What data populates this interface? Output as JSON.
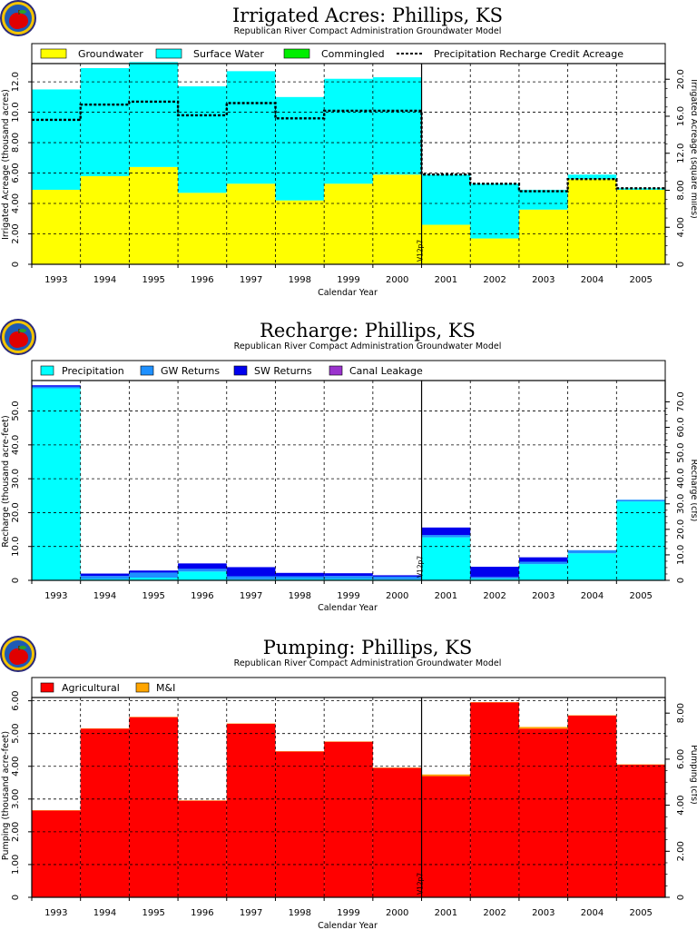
{
  "chart_data": [
    {
      "type": "bar",
      "title": "Irrigated Acres: Phillips, KS",
      "subtitle": "Republican River Compact Administration Groundwater Model",
      "xlabel": "Calendar Year",
      "ylabel": "Irrigated Acreage (thousand acres)",
      "y2label": "Irrigated Acreage (square miles)",
      "categories": [
        "1993",
        "1994",
        "1995",
        "1996",
        "1997",
        "1998",
        "1999",
        "2000",
        "2001",
        "2002",
        "2003",
        "2004",
        "2005"
      ],
      "ylim": [
        0,
        13.2
      ],
      "yticks": [
        "0",
        "2.00",
        "4.00",
        "6.00",
        "8.00",
        "10.0",
        "12.0"
      ],
      "y2ticks": [
        "0",
        "4.00",
        "8.00",
        "12.0",
        "16.0",
        "20.0"
      ],
      "stacked": true,
      "divider_label": "V12p7",
      "divider_after": "2000",
      "legend": [
        "Groundwater",
        "Surface Water",
        "Commingled",
        "Precipitation Recharge Credit Acreage"
      ],
      "series": [
        {
          "name": "Groundwater",
          "color": "#ffff00",
          "values": [
            4.9,
            5.8,
            6.4,
            4.7,
            5.3,
            4.2,
            5.3,
            5.9,
            2.6,
            1.7,
            3.6,
            5.6,
            4.9
          ]
        },
        {
          "name": "Surface Water",
          "color": "#00ffff",
          "values": [
            6.6,
            7.1,
            6.9,
            7.0,
            7.4,
            6.8,
            6.9,
            6.4,
            3.3,
            3.6,
            1.3,
            0.3,
            0.1
          ]
        },
        {
          "name": "Commingled",
          "color": "#00ee00",
          "values": [
            0,
            0,
            0,
            0,
            0,
            0,
            0,
            0,
            0,
            0,
            0,
            0,
            0
          ]
        }
      ],
      "line_series": {
        "name": "Precipitation Recharge Credit Acreage",
        "values": [
          9.5,
          10.5,
          10.7,
          9.8,
          10.6,
          9.6,
          10.1,
          10.1,
          5.9,
          5.3,
          4.8,
          5.6,
          5.0
        ]
      },
      "grid": true,
      "legend_position": "top"
    },
    {
      "type": "bar",
      "title": "Recharge: Phillips, KS",
      "subtitle": "Republican River Compact Administration Groundwater Model",
      "xlabel": "Calendar Year",
      "ylabel": "Recharge (thousand acre-feet)",
      "y2label": "Recharge (cfs)",
      "categories": [
        "1993",
        "1994",
        "1995",
        "1996",
        "1997",
        "1998",
        "1999",
        "2000",
        "2001",
        "2002",
        "2003",
        "2004",
        "2005"
      ],
      "ylim": [
        0,
        59
      ],
      "yticks": [
        "0",
        "10.0",
        "20.0",
        "30.0",
        "40.0",
        "50.0"
      ],
      "y2ticks": [
        "0",
        "10.0",
        "20.0",
        "30.0",
        "40.0",
        "50.0",
        "60.0",
        "70.0"
      ],
      "stacked": true,
      "divider_label": "V12p7",
      "divider_after": "2000",
      "legend": [
        "Precipitation",
        "GW Returns",
        "SW Returns",
        "Canal Leakage"
      ],
      "series": [
        {
          "name": "Precipitation",
          "color": "#00ffff",
          "values": [
            56.7,
            0.4,
            0.8,
            2.6,
            0.3,
            0.4,
            0.4,
            0.3,
            12.7,
            0.5,
            4.8,
            8.0,
            23.3
          ]
        },
        {
          "name": "GW Returns",
          "color": "#1e90ff",
          "values": [
            0.5,
            0.9,
            1.5,
            0.8,
            0.9,
            0.8,
            0.9,
            0.8,
            0.7,
            0.5,
            0.7,
            0.9,
            0.5
          ]
        },
        {
          "name": "SW Returns",
          "color": "#0000ee",
          "values": [
            0.4,
            0.7,
            0.6,
            1.6,
            2.7,
            1.0,
            0.8,
            0.4,
            2.2,
            3.0,
            1.3,
            0,
            0
          ]
        },
        {
          "name": "Canal Leakage",
          "color": "#9a32cd",
          "values": [
            0,
            0,
            0,
            0,
            0,
            0,
            0,
            0,
            0,
            0,
            0,
            0,
            0
          ]
        }
      ],
      "grid": true,
      "legend_position": "top"
    },
    {
      "type": "bar",
      "title": "Pumping: Phillips, KS",
      "subtitle": "Republican River Compact Administration Groundwater Model",
      "xlabel": "Calendar Year",
      "ylabel": "Pumping (thousand acre-feet)",
      "y2label": "Pumping (cfs)",
      "categories": [
        "1993",
        "1994",
        "1995",
        "1996",
        "1997",
        "1998",
        "1999",
        "2000",
        "2001",
        "2002",
        "2003",
        "2004",
        "2005"
      ],
      "ylim": [
        0,
        6.1
      ],
      "yticks": [
        "0",
        "1.00",
        "2.00",
        "3.00",
        "4.00",
        "5.00",
        "6.00"
      ],
      "y2ticks": [
        "0",
        "2.00",
        "4.00",
        "6.00",
        "8.00"
      ],
      "stacked": true,
      "divider_label": "V12p7",
      "divider_after": "2000",
      "legend": [
        "Agricultural",
        "M&I"
      ],
      "series": [
        {
          "name": "Agricultural",
          "color": "#ff0000",
          "values": [
            2.65,
            5.15,
            5.5,
            2.95,
            5.3,
            4.45,
            4.75,
            3.95,
            3.7,
            5.95,
            5.15,
            5.55,
            4.05
          ]
        },
        {
          "name": "M&I",
          "color": "#ffa500",
          "values": [
            0.01,
            0.01,
            0.01,
            0.01,
            0.01,
            0.01,
            0.01,
            0.01,
            0.05,
            0.01,
            0.05,
            0.01,
            0.01
          ]
        }
      ],
      "grid": true,
      "legend_position": "top"
    }
  ]
}
